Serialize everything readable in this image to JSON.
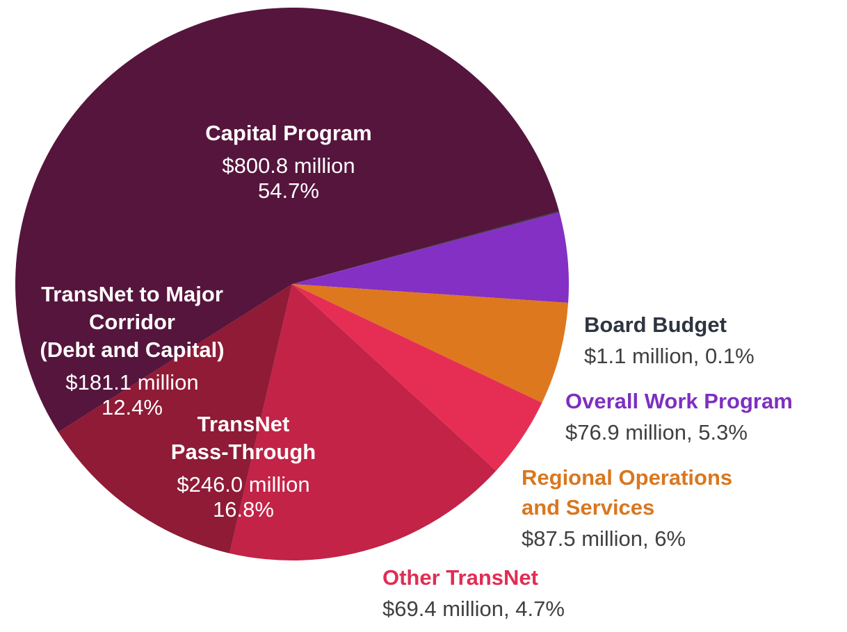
{
  "chart_data": {
    "type": "pie",
    "title": "",
    "slices": [
      {
        "name_lines": [
          "Board Budget"
        ],
        "value_millions": 1.1,
        "value_text": "$1.1 million, 0.1%",
        "percent": 0.1,
        "color": "#3a3a4a",
        "label_color": "#2e3440",
        "value_color": "#404040"
      },
      {
        "name_lines": [
          "Overall Work Program"
        ],
        "value_millions": 76.9,
        "value_text": "$76.9 million, 5.3%",
        "percent": 5.3,
        "color": "#8430c4",
        "label_color": "#7d2fbf",
        "value_color": "#404040"
      },
      {
        "name_lines": [
          "Regional Operations",
          "and Services"
        ],
        "value_millions": 87.5,
        "value_text": "$87.5 million, 6%",
        "percent": 6,
        "color": "#de781e",
        "label_color": "#d9771f",
        "value_color": "#404040"
      },
      {
        "name_lines": [
          "Other TransNet"
        ],
        "value_millions": 69.4,
        "value_text": "$69.4 million, 4.7%",
        "percent": 4.7,
        "color": "#e62e55",
        "label_color": "#e02d54",
        "value_color": "#404040"
      },
      {
        "name_lines": [
          "TransNet",
          "Pass-Through"
        ],
        "value_millions": 246.0,
        "value_lines": [
          "$246.0 million",
          "16.8%"
        ],
        "percent": 16.8,
        "color": "#c22347",
        "label_color": "#ffffff",
        "value_color": "#ffffff"
      },
      {
        "name_lines": [
          "TransNet to Major",
          "Corridor",
          "(Debt and Capital)"
        ],
        "value_millions": 181.1,
        "value_lines": [
          "$181.1 million",
          "12.4%"
        ],
        "percent": 12.4,
        "color": "#8f1b36",
        "label_color": "#ffffff",
        "value_color": "#ffffff"
      },
      {
        "name_lines": [
          "Capital Program"
        ],
        "value_millions": 800.8,
        "value_lines": [
          "$800.8 million",
          "54.7%"
        ],
        "percent": 54.7,
        "color": "#56153c",
        "label_color": "#ffffff",
        "value_color": "#ffffff"
      }
    ]
  }
}
